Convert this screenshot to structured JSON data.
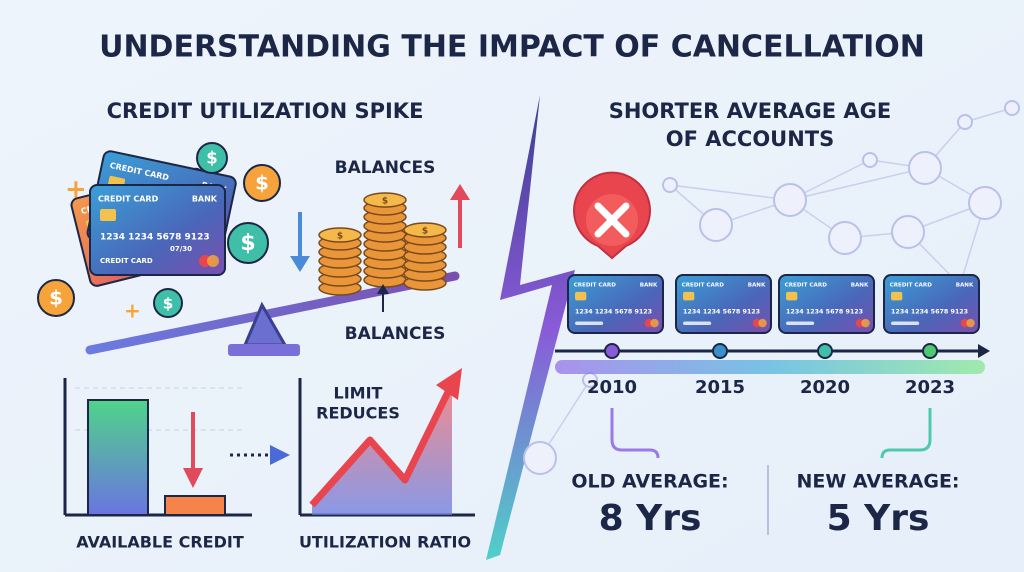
{
  "header": {
    "title": "UNDERSTANDING THE IMPACT OF CANCELLATION"
  },
  "left": {
    "title": "CREDIT UTILIZATION SPIKE",
    "balances_top": "BALANCES",
    "balances_bottom": "BALANCES",
    "limit_reduces": [
      "LIMIT",
      "REDUCES"
    ],
    "available_credit": "AVAILABLE CREDIT",
    "utilization_ratio": "UTILIZATION RATIO"
  },
  "card": {
    "label": "CREDIT CARD",
    "bank": "BANK",
    "number": "1234 1234 5678 9123",
    "expiry": "07/30"
  },
  "currency": "$",
  "right": {
    "title": [
      "SHORTER AVERAGE AGE",
      "OF ACCOUNTS"
    ],
    "years": [
      "2010",
      "2015",
      "2020",
      "2023"
    ],
    "old_label": "OLD AVERAGE:",
    "old_value": "8 Yrs",
    "new_label": "NEW AVERAGE:",
    "new_value": "5 Yrs"
  }
}
